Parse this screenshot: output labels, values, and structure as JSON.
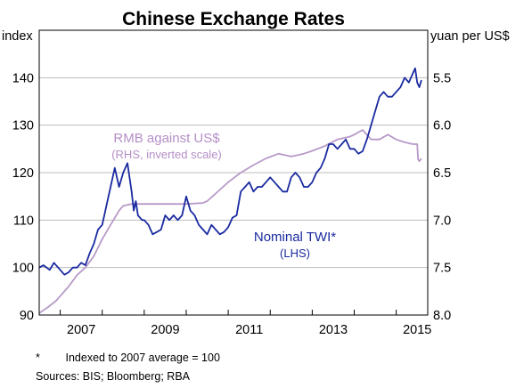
{
  "chart_data": {
    "type": "line",
    "title": "Chinese Exchange Rates",
    "left_axis": {
      "unit": "index",
      "ticks": [
        90,
        100,
        110,
        120,
        130,
        140
      ],
      "range": [
        90,
        150
      ]
    },
    "right_axis": {
      "unit": "yuan per US$",
      "ticks": [
        "5.5",
        "6.0",
        "6.5",
        "7.0",
        "7.5",
        "8.0"
      ],
      "range": [
        8.0,
        5.0
      ],
      "inverted": true
    },
    "x_axis": {
      "ticks": [
        "2007",
        "2009",
        "2011",
        "2013",
        "2015"
      ],
      "range": [
        2006.5,
        2015.75
      ]
    },
    "grid": true,
    "colors": {
      "twi": "#1a2aa0",
      "rmb": "#b89ac8"
    },
    "series": [
      {
        "name": "Nominal TWI*",
        "label_line1": "Nominal TWI*",
        "label_line2": "(LHS)",
        "axis": "left",
        "x": [
          2006.5,
          2006.6,
          2006.75,
          2006.85,
          2007.0,
          2007.1,
          2007.2,
          2007.3,
          2007.4,
          2007.5,
          2007.6,
          2007.7,
          2007.8,
          2007.9,
          2008.0,
          2008.1,
          2008.2,
          2008.3,
          2008.4,
          2008.5,
          2008.6,
          2008.7,
          2008.75,
          2008.8,
          2008.85,
          2008.9,
          2008.95,
          2009.0,
          2009.1,
          2009.2,
          2009.3,
          2009.4,
          2009.5,
          2009.6,
          2009.7,
          2009.8,
          2009.9,
          2010.0,
          2010.1,
          2010.2,
          2010.3,
          2010.4,
          2010.5,
          2010.6,
          2010.7,
          2010.8,
          2010.9,
          2011.0,
          2011.1,
          2011.2,
          2011.3,
          2011.4,
          2011.5,
          2011.6,
          2011.7,
          2011.8,
          2011.9,
          2012.0,
          2012.1,
          2012.2,
          2012.3,
          2012.4,
          2012.5,
          2012.6,
          2012.7,
          2012.8,
          2012.9,
          2013.0,
          2013.1,
          2013.2,
          2013.3,
          2013.4,
          2013.5,
          2013.6,
          2013.7,
          2013.8,
          2013.9,
          2014.0,
          2014.1,
          2014.2,
          2014.3,
          2014.4,
          2014.5,
          2014.6,
          2014.7,
          2014.8,
          2014.9,
          2015.0,
          2015.1,
          2015.2,
          2015.3,
          2015.4,
          2015.45,
          2015.5,
          2015.55,
          2015.6
        ],
        "values": [
          100,
          100.5,
          99.5,
          101,
          99.5,
          98.5,
          99,
          100,
          100,
          101,
          100.5,
          103,
          105,
          108,
          109,
          113,
          117,
          121,
          117,
          120,
          122,
          116,
          112,
          114,
          111,
          110.5,
          110,
          110,
          109,
          107,
          107.5,
          108,
          111,
          110,
          111,
          110,
          111,
          115,
          112,
          111,
          109,
          108,
          107,
          109,
          108,
          107,
          107.5,
          108.5,
          110.5,
          111,
          116,
          117,
          118,
          116,
          117,
          117,
          118,
          119,
          118,
          117,
          116,
          116,
          119,
          120,
          119,
          117,
          117,
          118,
          120,
          121,
          123,
          126,
          126,
          125,
          126,
          127,
          125,
          125,
          124,
          124.5,
          127,
          130,
          133,
          136,
          137,
          136,
          136,
          137,
          138,
          140,
          139,
          141,
          142,
          139,
          138,
          139.5
        ]
      },
      {
        "name": "RMB against US$",
        "label_line1": "RMB against US$",
        "label_line2": "(RHS, inverted scale)",
        "axis": "right",
        "x": [
          2006.5,
          2006.7,
          2006.9,
          2007.0,
          2007.2,
          2007.4,
          2007.6,
          2007.8,
          2008.0,
          2008.2,
          2008.4,
          2008.5,
          2008.7,
          2009.0,
          2009.5,
          2010.0,
          2010.4,
          2010.5,
          2010.7,
          2011.0,
          2011.3,
          2011.6,
          2011.9,
          2012.2,
          2012.5,
          2012.8,
          2013.0,
          2013.3,
          2013.6,
          2013.9,
          2014.0,
          2014.2,
          2014.4,
          2014.6,
          2014.8,
          2015.0,
          2015.2,
          2015.4,
          2015.5,
          2015.52,
          2015.55,
          2015.6
        ],
        "values": [
          7.98,
          7.92,
          7.85,
          7.8,
          7.7,
          7.58,
          7.5,
          7.38,
          7.2,
          7.05,
          6.9,
          6.85,
          6.83,
          6.83,
          6.83,
          6.83,
          6.82,
          6.8,
          6.72,
          6.6,
          6.5,
          6.42,
          6.35,
          6.3,
          6.33,
          6.3,
          6.27,
          6.22,
          6.15,
          6.12,
          6.1,
          6.05,
          6.15,
          6.15,
          6.1,
          6.15,
          6.18,
          6.2,
          6.2,
          6.36,
          6.38,
          6.35
        ]
      }
    ]
  },
  "footnotes": {
    "star": "*",
    "indexed_note": "Indexed to 2007 average = 100",
    "sources": "Sources:  BIS; Bloomberg; RBA"
  }
}
